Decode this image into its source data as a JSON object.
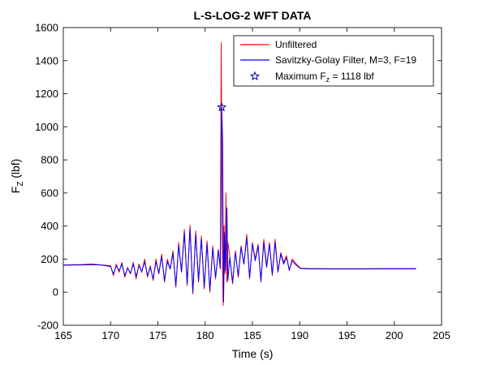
{
  "chart_data": {
    "type": "line",
    "title": "L-S-LOG-2 WFT DATA",
    "xlabel": "Time (s)",
    "ylabel": {
      "main": "F",
      "sub": "Z",
      "unit": " (lbf)"
    },
    "xlim": [
      165,
      205
    ],
    "ylim": [
      -200,
      1600
    ],
    "xticks": [
      165,
      170,
      175,
      180,
      185,
      190,
      195,
      200,
      205
    ],
    "yticks": [
      -200,
      0,
      200,
      400,
      600,
      800,
      1000,
      1200,
      1400,
      1600
    ],
    "grid": false,
    "legend_position": "top-right",
    "series": [
      {
        "name": "Unfiltered",
        "color": "#ff0000",
        "x": [
          165,
          166,
          167,
          168,
          169,
          170,
          170.3,
          170.6,
          170.9,
          171.2,
          171.5,
          171.8,
          172.1,
          172.4,
          172.7,
          173,
          173.3,
          173.6,
          173.9,
          174.2,
          174.5,
          174.8,
          175.1,
          175.4,
          175.7,
          176,
          176.3,
          176.6,
          176.9,
          177.2,
          177.5,
          177.8,
          178.1,
          178.4,
          178.7,
          179,
          179.3,
          179.6,
          179.9,
          180.2,
          180.5,
          180.8,
          181.1,
          181.4,
          181.6,
          181.7,
          181.8,
          181.9,
          182,
          182.1,
          182.2,
          182.3,
          182.4,
          182.6,
          182.9,
          183.2,
          183.5,
          183.8,
          184.1,
          184.4,
          184.7,
          185,
          185.3,
          185.6,
          185.9,
          186.2,
          186.5,
          186.8,
          187.1,
          187.4,
          187.7,
          188,
          188.3,
          188.6,
          188.9,
          189.2,
          189.5,
          189.8,
          190.1,
          191,
          193,
          195,
          197,
          199,
          201,
          202.3
        ],
        "y": [
          165,
          166,
          167,
          170,
          165,
          160,
          100,
          170,
          120,
          180,
          90,
          150,
          110,
          180,
          80,
          170,
          120,
          200,
          90,
          160,
          70,
          200,
          110,
          230,
          60,
          200,
          140,
          250,
          30,
          300,
          120,
          380,
          40,
          405,
          -10,
          370,
          60,
          340,
          20,
          310,
          0,
          280,
          80,
          260,
          140,
          1510,
          320,
          -80,
          400,
          110,
          600,
          60,
          300,
          220,
          50,
          250,
          90,
          280,
          170,
          350,
          80,
          300,
          200,
          290,
          60,
          320,
          160,
          300,
          100,
          320,
          120,
          240,
          180,
          220,
          130,
          200,
          180,
          160,
          145,
          143,
          142,
          142,
          142,
          143,
          143,
          143
        ]
      },
      {
        "name": "Savitzky-Golay Filter, M=3, F=19",
        "color": "#0000ff",
        "x": [
          165,
          166,
          167,
          168,
          169,
          170,
          170.3,
          170.6,
          170.9,
          171.2,
          171.5,
          171.8,
          172.1,
          172.4,
          172.7,
          173,
          173.3,
          173.6,
          173.9,
          174.2,
          174.5,
          174.8,
          175.1,
          175.4,
          175.7,
          176,
          176.3,
          176.6,
          176.9,
          177.2,
          177.5,
          177.8,
          178.1,
          178.4,
          178.7,
          179,
          179.3,
          179.6,
          179.9,
          180.2,
          180.5,
          180.8,
          181.1,
          181.4,
          181.6,
          181.75,
          181.85,
          181.95,
          182.05,
          182.15,
          182.3,
          182.4,
          182.6,
          182.9,
          183.2,
          183.5,
          183.8,
          184.1,
          184.4,
          184.7,
          185,
          185.3,
          185.6,
          185.9,
          186.2,
          186.5,
          186.8,
          187.1,
          187.4,
          187.7,
          188,
          188.3,
          188.6,
          188.9,
          189.2,
          189.5,
          189.8,
          190.1,
          191,
          193,
          195,
          197,
          199,
          201,
          202.3
        ],
        "y": [
          163,
          164,
          165,
          166,
          164,
          155,
          110,
          160,
          130,
          170,
          100,
          145,
          115,
          170,
          95,
          160,
          125,
          185,
          100,
          150,
          80,
          185,
          115,
          215,
          70,
          185,
          140,
          235,
          40,
          280,
          125,
          360,
          50,
          385,
          0,
          350,
          70,
          320,
          30,
          290,
          10,
          265,
          90,
          250,
          150,
          1118,
          910,
          -60,
          360,
          130,
          510,
          70,
          210,
          60,
          240,
          100,
          270,
          170,
          330,
          90,
          290,
          190,
          280,
          70,
          300,
          150,
          290,
          110,
          300,
          125,
          230,
          170,
          210,
          135,
          190,
          170,
          155,
          143,
          141,
          140,
          140,
          140,
          141,
          141,
          141
        ]
      }
    ],
    "marker": {
      "label_main": "Maximum F",
      "label_sub": "z",
      "label_rest": " = 1118 lbf",
      "x": 181.75,
      "y": 1118,
      "color": "#0000aa",
      "shape": "star"
    }
  }
}
